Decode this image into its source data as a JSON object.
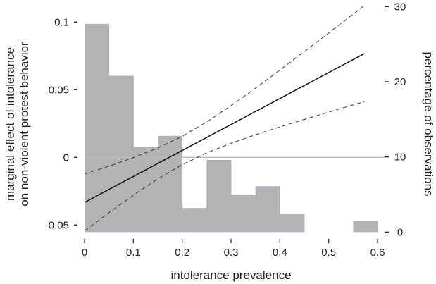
{
  "chart_data": {
    "type": "bar+line",
    "title": "",
    "xlabel": "intolerance prevalence",
    "ylabel_left": [
      "marginal effect of intolerance",
      "on non-violent protest behavior"
    ],
    "ylabel_right": "percentage of observations",
    "xlim": [
      0,
      0.6
    ],
    "ylim_left": [
      -0.055,
      0.1
    ],
    "ylim_right": [
      0,
      30
    ],
    "x_ticks": [
      "0",
      "0.1",
      "0.2",
      "0.3",
      "0.4",
      "0.5",
      "0.6"
    ],
    "x_tick_values": [
      0,
      0.1,
      0.2,
      0.3,
      0.4,
      0.5,
      0.6
    ],
    "y_left_ticks": [
      "-0.05",
      "0",
      "0.05",
      "0.1"
    ],
    "y_left_tick_values": [
      -0.05,
      0,
      0.05,
      0.1
    ],
    "y_right_ticks": [
      "0",
      "10",
      "20",
      "30"
    ],
    "y_right_tick_values": [
      0,
      10,
      20,
      30
    ],
    "reference_line_y": 0,
    "histogram": {
      "name": "percentage of observations",
      "color": "#b2b3b5",
      "bin_edges": [
        0,
        0.05,
        0.1,
        0.15,
        0.2,
        0.25,
        0.3,
        0.35,
        0.4,
        0.45,
        0.5,
        0.55,
        0.6
      ],
      "values": [
        27.7,
        20.8,
        11.3,
        12.8,
        3.2,
        9.6,
        4.9,
        6.1,
        2.4,
        0,
        0,
        1.5
      ]
    },
    "series": [
      {
        "name": "marginal effect",
        "style": "solid",
        "color": "#111111",
        "x": [
          0,
          0.573
        ],
        "y": [
          -0.0333,
          0.0767
        ]
      },
      {
        "name": "upper 95% CI",
        "style": "dashed",
        "color": "#444444",
        "x": [
          0,
          0.05,
          0.1,
          0.15,
          0.2,
          0.25,
          0.3,
          0.35,
          0.4,
          0.45,
          0.5,
          0.573
        ],
        "y": [
          -0.0123,
          -0.0065,
          -0.0002,
          0.0069,
          0.0156,
          0.0261,
          0.0382,
          0.0511,
          0.0645,
          0.0782,
          0.0919,
          0.1122
        ]
      },
      {
        "name": "lower 95% CI",
        "style": "dashed",
        "color": "#444444",
        "x": [
          0,
          0.05,
          0.1,
          0.15,
          0.2,
          0.25,
          0.3,
          0.35,
          0.4,
          0.45,
          0.5,
          0.573
        ],
        "y": [
          -0.0543,
          -0.0409,
          -0.028,
          -0.0159,
          -0.0054,
          0.0033,
          0.0104,
          0.0167,
          0.0225,
          0.028,
          0.0335,
          0.0412
        ]
      }
    ]
  }
}
